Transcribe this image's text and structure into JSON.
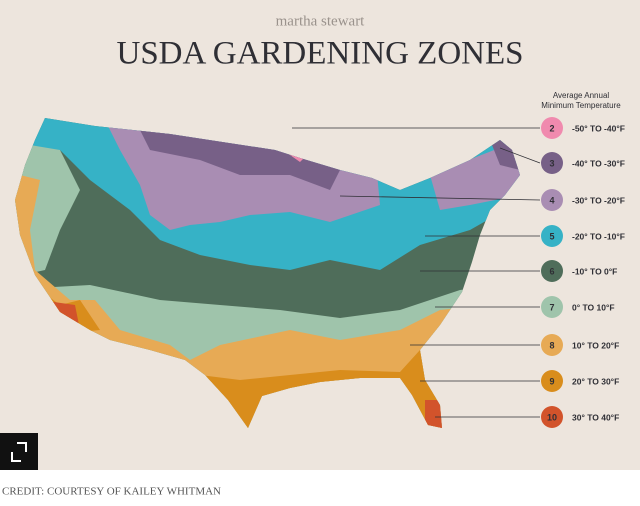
{
  "brand": "martha stewart",
  "title": "USDA GARDENING ZONES",
  "legend": {
    "heading_line1": "Average Annual",
    "heading_line2": "Minimum Temperature",
    "zones": [
      {
        "zone": "2",
        "label": "-50° TO -40°F",
        "color": "#f08aae"
      },
      {
        "zone": "3",
        "label": "-40° TO -30°F",
        "color": "#776087"
      },
      {
        "zone": "4",
        "label": "-30° TO -20°F",
        "color": "#a98db3"
      },
      {
        "zone": "5",
        "label": "-20° TO -10°F",
        "color": "#36b2c6"
      },
      {
        "zone": "6",
        "label": "-10° TO 0°F",
        "color": "#4f6d5a"
      },
      {
        "zone": "7",
        "label": "0° TO 10°F",
        "color": "#9fc4ab"
      },
      {
        "zone": "8",
        "label": "10° TO 20°F",
        "color": "#e7aa55"
      },
      {
        "zone": "9",
        "label": "20° TO 30°F",
        "color": "#d98d1c"
      },
      {
        "zone": "10",
        "label": "30° TO 40°F",
        "color": "#d2532b"
      }
    ]
  },
  "credit": "CREDIT: COURTESY OF KAILEY WHITMAN"
}
